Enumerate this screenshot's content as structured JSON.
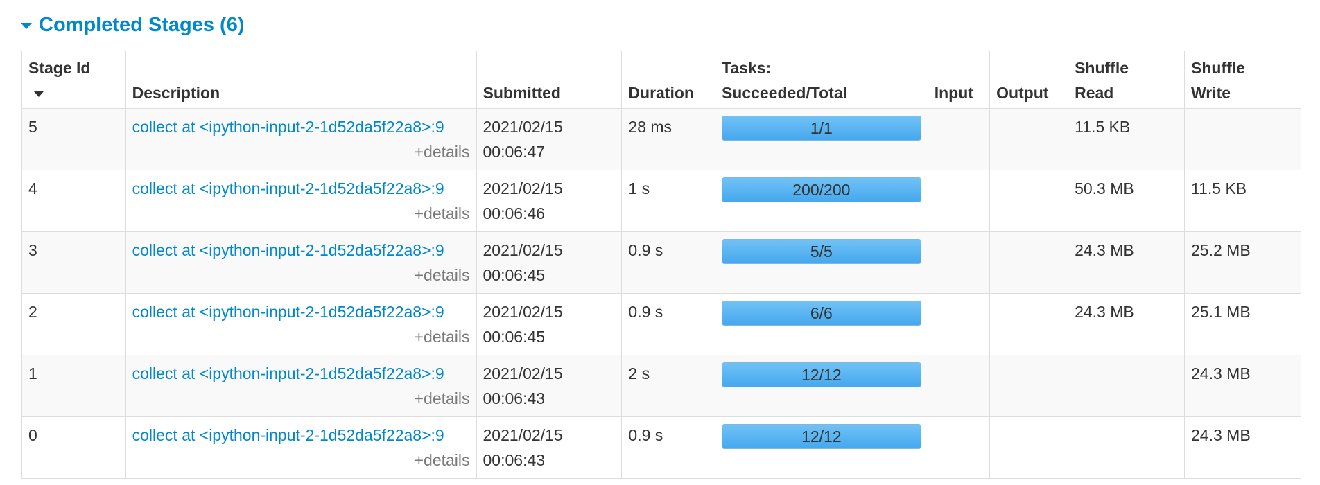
{
  "section": {
    "title": "Completed Stages (6)"
  },
  "table": {
    "headers": {
      "stage_id": "Stage Id",
      "description": "Description",
      "submitted": "Submitted",
      "duration": "Duration",
      "tasks_line1": "Tasks:",
      "tasks_line2": "Succeeded/Total",
      "input": "Input",
      "output": "Output",
      "shuffle_read_line1": "Shuffle",
      "shuffle_read_line2": "Read",
      "shuffle_write_line1": "Shuffle",
      "shuffle_write_line2": "Write"
    },
    "sort_icon": "caret-down-icon",
    "details_label": "+details",
    "rows": [
      {
        "stage_id": "5",
        "description": "collect at <ipython-input-2-1d52da5f22a8>:9",
        "submitted_date": "2021/02/15",
        "submitted_time": "00:06:47",
        "duration": "28 ms",
        "tasks": "1/1",
        "tasks_fraction": 1.0,
        "input": "",
        "output": "",
        "shuffle_read": "11.5 KB",
        "shuffle_write": ""
      },
      {
        "stage_id": "4",
        "description": "collect at <ipython-input-2-1d52da5f22a8>:9",
        "submitted_date": "2021/02/15",
        "submitted_time": "00:06:46",
        "duration": "1 s",
        "tasks": "200/200",
        "tasks_fraction": 1.0,
        "input": "",
        "output": "",
        "shuffle_read": "50.3 MB",
        "shuffle_write": "11.5 KB"
      },
      {
        "stage_id": "3",
        "description": "collect at <ipython-input-2-1d52da5f22a8>:9",
        "submitted_date": "2021/02/15",
        "submitted_time": "00:06:45",
        "duration": "0.9 s",
        "tasks": "5/5",
        "tasks_fraction": 1.0,
        "input": "",
        "output": "",
        "shuffle_read": "24.3 MB",
        "shuffle_write": "25.2 MB"
      },
      {
        "stage_id": "2",
        "description": "collect at <ipython-input-2-1d52da5f22a8>:9",
        "submitted_date": "2021/02/15",
        "submitted_time": "00:06:45",
        "duration": "0.9 s",
        "tasks": "6/6",
        "tasks_fraction": 1.0,
        "input": "",
        "output": "",
        "shuffle_read": "24.3 MB",
        "shuffle_write": "25.1 MB"
      },
      {
        "stage_id": "1",
        "description": "collect at <ipython-input-2-1d52da5f22a8>:9",
        "submitted_date": "2021/02/15",
        "submitted_time": "00:06:43",
        "duration": "2 s",
        "tasks": "12/12",
        "tasks_fraction": 1.0,
        "input": "",
        "output": "",
        "shuffle_read": "",
        "shuffle_write": "24.3 MB"
      },
      {
        "stage_id": "0",
        "description": "collect at <ipython-input-2-1d52da5f22a8>:9",
        "submitted_date": "2021/02/15",
        "submitted_time": "00:06:43",
        "duration": "0.9 s",
        "tasks": "12/12",
        "tasks_fraction": 1.0,
        "input": "",
        "output": "",
        "shuffle_read": "",
        "shuffle_write": "24.3 MB"
      }
    ]
  },
  "colors": {
    "link": "#0088cc",
    "progress": "#5ab4f0"
  }
}
